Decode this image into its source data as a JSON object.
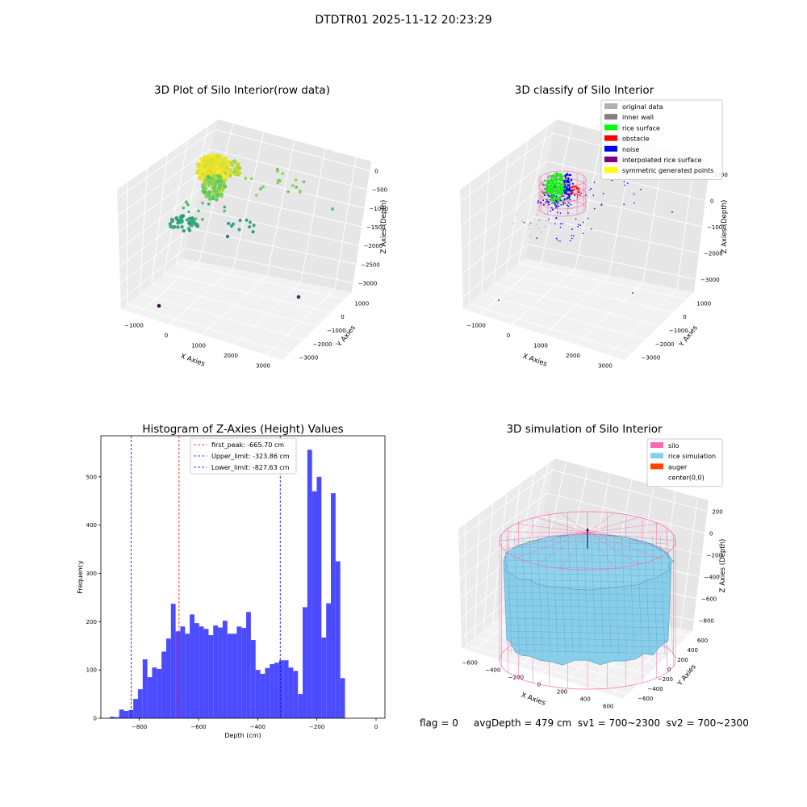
{
  "suptitle": "DTDTR01 2025-11-12 20:23:29",
  "status_text": "flag = 0     avgDepth = 479 cm  sv1 = 700~2300  sv2 = 700~2300",
  "chart_data": [
    {
      "type": "scatter3d",
      "title": "3D Plot of Silo Interior(row data)",
      "xlabel": "X Axies",
      "ylabel": "Y Axies",
      "zlabel": "Z Axies (Depth)",
      "x_ticks": [
        "−1000",
        "0",
        "1000",
        "2000",
        "3000"
      ],
      "y_ticks": [
        "1000",
        "0",
        "−1000",
        "−2000",
        "−3000"
      ],
      "z_ticks": [
        "0",
        "−500",
        "−1000",
        "−1500",
        "−2000",
        "−2500",
        "−3000"
      ],
      "colormap": "viridis",
      "grid": true
    },
    {
      "type": "scatter3d",
      "title": "3D classify of Silo Interior",
      "xlabel": "X Axies",
      "ylabel": "Y Axies",
      "zlabel": "Z Axies (Depth)",
      "x_ticks": [
        "−1000",
        "0",
        "1000",
        "2000",
        "3000"
      ],
      "y_ticks": [
        "1000",
        "0",
        "−1000",
        "−2000",
        "−3000"
      ],
      "z_ticks": [
        "1000",
        "0",
        "−1000",
        "−2000",
        "−3000"
      ],
      "legend": [
        {
          "label": "original data",
          "color": "#b0b0b0"
        },
        {
          "label": "inner wall",
          "color": "#808080"
        },
        {
          "label": "rice surface",
          "color": "#00ff00"
        },
        {
          "label": "obstacle",
          "color": "#ff0000"
        },
        {
          "label": "noise",
          "color": "#0000ff"
        },
        {
          "label": "interpolated rice surface",
          "color": "#800080"
        },
        {
          "label": "symmetric generated points",
          "color": "#ffff00"
        }
      ],
      "legend_position": "top-right",
      "grid": true
    },
    {
      "type": "bar",
      "title": "Histogram of Z-Axies (Height) Values",
      "xlabel": "Depth (cm)",
      "ylabel": "Frequency",
      "xlim": [
        -930,
        30
      ],
      "ylim": [
        0,
        585
      ],
      "x_ticks": [
        "−800",
        "−600",
        "−400",
        "−200",
        "0"
      ],
      "x_tick_values": [
        -800,
        -600,
        -400,
        -200,
        0
      ],
      "y_ticks": [
        "0",
        "100",
        "200",
        "300",
        "400",
        "500"
      ],
      "y_tick_values": [
        0,
        100,
        200,
        300,
        400,
        500
      ],
      "bin_start": -900,
      "bin_width": 15.9,
      "values": [
        3,
        2,
        18,
        15,
        17,
        40,
        60,
        122,
        85,
        105,
        102,
        138,
        165,
        237,
        180,
        190,
        175,
        215,
        197,
        190,
        185,
        172,
        192,
        188,
        202,
        175,
        175,
        190,
        187,
        220,
        162,
        100,
        92,
        104,
        112,
        115,
        120,
        120,
        105,
        98,
        50,
        230,
        556,
        470,
        500,
        167,
        238,
        466,
        325,
        83
      ],
      "bar_color": "#4b4bff",
      "lines": [
        {
          "label": "first_peak: -665.70 cm",
          "value": -665.7,
          "color": "#ff0000"
        },
        {
          "label": "Upper_limit: -323.86 cm",
          "value": -323.86,
          "color": "#0000ff"
        },
        {
          "label": "Lower_limit: -827.63 cm",
          "value": -827.63,
          "color": "#0000ff"
        }
      ],
      "legend_position": "top-center"
    },
    {
      "type": "surface3d",
      "title": "3D simulation of Silo Interior",
      "xlabel": "X Axies",
      "ylabel": "Y Axies",
      "zlabel": "Z Axies (Depth)",
      "x_ticks": [
        "−600",
        "−400",
        "−200",
        "0",
        "200",
        "400",
        "600"
      ],
      "y_ticks": [
        "600",
        "400",
        "200",
        "0",
        "−200",
        "−400",
        "−600"
      ],
      "z_ticks": [
        "200",
        "0",
        "−200",
        "−400",
        "−600",
        "−800"
      ],
      "legend": [
        {
          "label": "silo",
          "color": "#ff69b4"
        },
        {
          "label": "rice simulation",
          "color": "#87ceeb"
        },
        {
          "label": "auger",
          "color": "#ff4500"
        },
        {
          "label": "center(0,0)",
          "color": "#ffffff"
        }
      ],
      "legend_position": "top-right",
      "grid": true
    }
  ]
}
